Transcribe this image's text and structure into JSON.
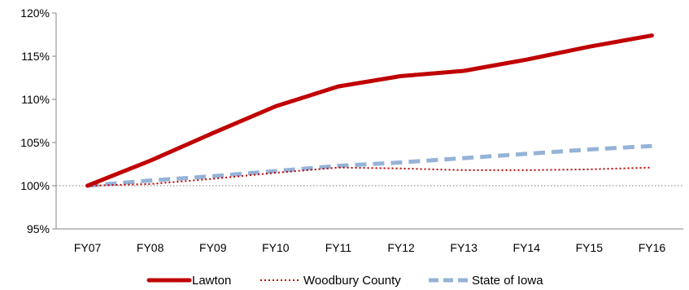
{
  "chart_data": {
    "type": "line",
    "title": "",
    "xlabel": "",
    "ylabel": "",
    "categories": [
      "FY07",
      "FY08",
      "FY09",
      "FY10",
      "FY11",
      "FY12",
      "FY13",
      "FY14",
      "FY15",
      "FY16"
    ],
    "ylim": [
      95,
      120
    ],
    "yticks": [
      95,
      100,
      105,
      110,
      115,
      120
    ],
    "ytick_labels": [
      "95%",
      "100%",
      "105%",
      "110%",
      "115%",
      "120%"
    ],
    "reference_line": 100,
    "grid": false,
    "legend_position": "bottom",
    "series": [
      {
        "name": "Lawton",
        "style": "solid",
        "color": "#C00000",
        "values": [
          100,
          102.9,
          106.1,
          109.2,
          111.5,
          112.7,
          113.3,
          114.6,
          116.1,
          117.4
        ]
      },
      {
        "name": "Woodbury County",
        "style": "dotted",
        "color": "#C00000",
        "values": [
          100,
          100.2,
          100.8,
          101.5,
          102.1,
          102.0,
          101.8,
          101.8,
          101.9,
          102.1
        ]
      },
      {
        "name": "State of Iowa",
        "style": "dashed",
        "color": "#95B3D7",
        "values": [
          100,
          100.6,
          101.1,
          101.7,
          102.3,
          102.7,
          103.2,
          103.7,
          104.2,
          104.6
        ]
      }
    ]
  }
}
